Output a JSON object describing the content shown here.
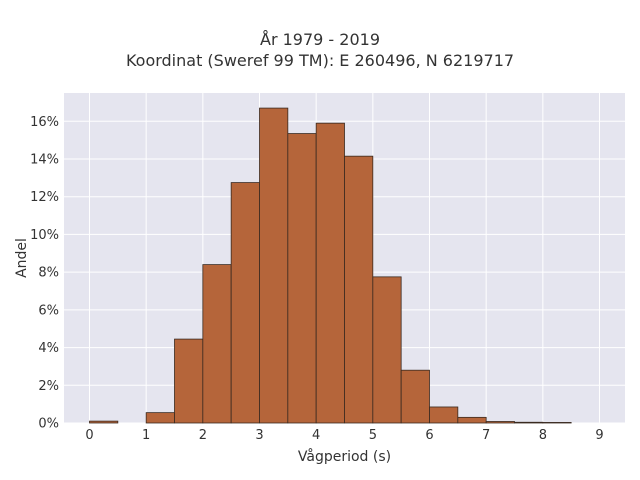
{
  "chart_data": {
    "type": "bar",
    "title_lines": [
      "År 1979 - 2019",
      "Koordinat (Sweref 99 TM): E 260496, N 6219717"
    ],
    "xlabel": "Vågperiod (s)",
    "ylabel": "Andel",
    "bin_width": 0.5,
    "bin_starts": [
      0,
      0.5,
      1,
      1.5,
      2,
      2.5,
      3,
      3.5,
      4,
      4.5,
      5,
      5.5,
      6,
      6.5,
      7,
      7.5,
      8
    ],
    "values": [
      0.1,
      0,
      0.55,
      4.45,
      8.4,
      12.75,
      16.7,
      15.35,
      15.9,
      14.15,
      7.75,
      2.8,
      0.85,
      0.3,
      0.08,
      0.04,
      0.03
    ],
    "xlim": [
      -0.45,
      9.45
    ],
    "ylim": [
      0,
      17.5
    ],
    "x_ticks": [
      0,
      1,
      2,
      3,
      4,
      5,
      6,
      7,
      8,
      9
    ],
    "y_ticks": [
      0,
      2,
      4,
      6,
      8,
      10,
      12,
      14,
      16
    ],
    "y_tick_suffix": "%",
    "grid": true,
    "colors": {
      "bar_fill": "#b5653a",
      "bar_edge": "#3a2a20",
      "plot_bg": "#e5e5ef",
      "grid": "#ffffff"
    }
  }
}
